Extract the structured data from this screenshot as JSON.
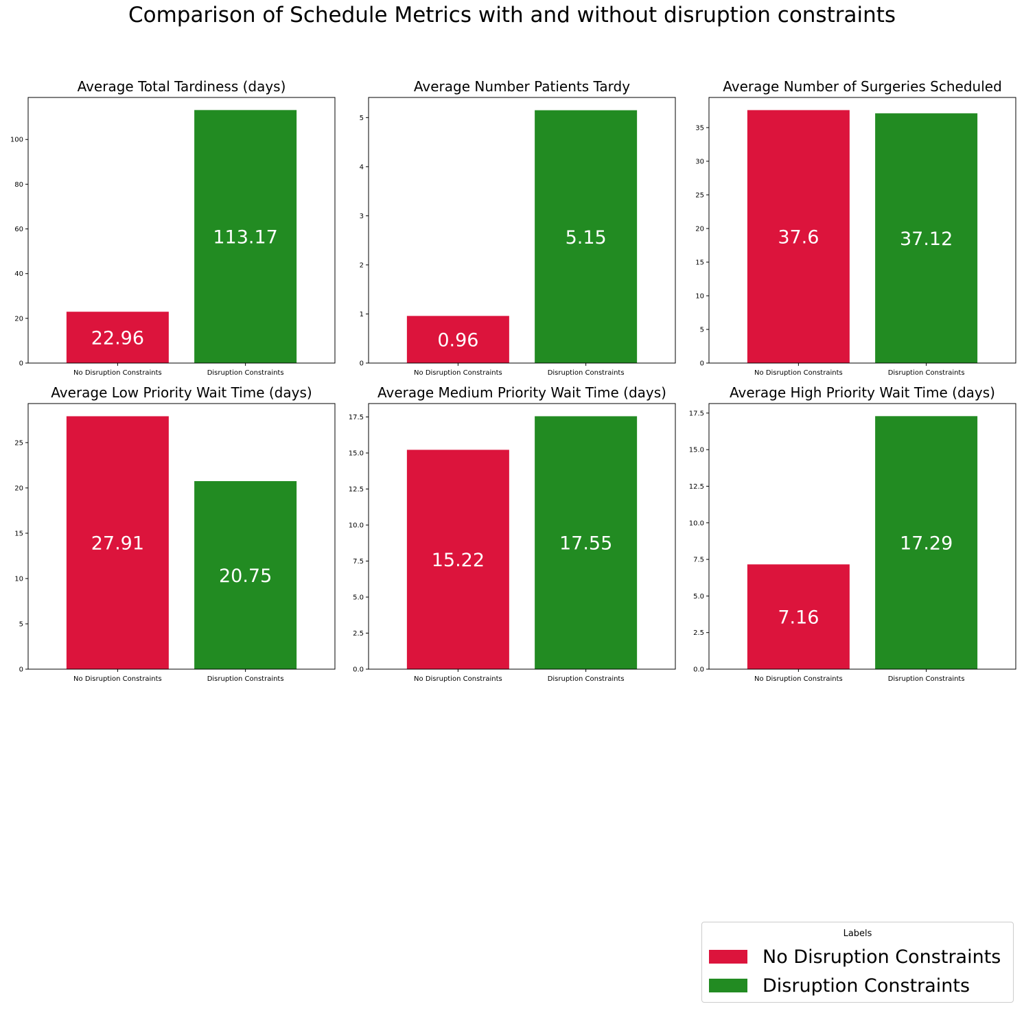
{
  "suptitle": "Comparison of Schedule Metrics with and without disruption constraints",
  "colors": {
    "no_disruption": "#DC143C",
    "disruption": "#228B22"
  },
  "legend": {
    "title": "Labels",
    "entries": [
      {
        "label": "No Disruption Constraints",
        "color": "#DC143C"
      },
      {
        "label": "Disruption Constraints",
        "color": "#228B22"
      }
    ]
  },
  "chart_data": [
    {
      "type": "bar",
      "title": "Average Total Tardiness (days)",
      "categories": [
        "No Disruption Constraints",
        "Disruption Constraints"
      ],
      "values": [
        22.96,
        113.17
      ],
      "value_labels": [
        "22.96",
        "113.17"
      ],
      "ylim": [
        0,
        118.8
      ],
      "yticks": [
        0,
        20,
        40,
        60,
        80,
        100
      ],
      "ytick_labels": [
        "0",
        "20",
        "40",
        "60",
        "80",
        "100"
      ]
    },
    {
      "type": "bar",
      "title": "Average Number Patients Tardy",
      "categories": [
        "No Disruption Constraints",
        "Disruption Constraints"
      ],
      "values": [
        0.96,
        5.15
      ],
      "value_labels": [
        "0.96",
        "5.15"
      ],
      "ylim": [
        0,
        5.41
      ],
      "yticks": [
        0,
        1,
        2,
        3,
        4,
        5
      ],
      "ytick_labels": [
        "0",
        "1",
        "2",
        "3",
        "4",
        "5"
      ]
    },
    {
      "type": "bar",
      "title": "Average Number of Surgeries Scheduled",
      "categories": [
        "No Disruption Constraints",
        "Disruption Constraints"
      ],
      "values": [
        37.6,
        37.12
      ],
      "value_labels": [
        "37.6",
        "37.12"
      ],
      "ylim": [
        0,
        39.48
      ],
      "yticks": [
        0,
        5,
        10,
        15,
        20,
        25,
        30,
        35
      ],
      "ytick_labels": [
        "0",
        "5",
        "10",
        "15",
        "20",
        "25",
        "30",
        "35"
      ]
    },
    {
      "type": "bar",
      "title": "Average Low Priority Wait Time (days)",
      "categories": [
        "No Disruption Constraints",
        "Disruption Constraints"
      ],
      "values": [
        27.91,
        20.75
      ],
      "value_labels": [
        "27.91",
        "20.75"
      ],
      "ylim": [
        0,
        29.31
      ],
      "yticks": [
        0,
        5,
        10,
        15,
        20,
        25
      ],
      "ytick_labels": [
        "0",
        "5",
        "10",
        "15",
        "20",
        "25"
      ]
    },
    {
      "type": "bar",
      "title": "Average Medium Priority Wait Time (days)",
      "categories": [
        "No Disruption Constraints",
        "Disruption Constraints"
      ],
      "values": [
        15.22,
        17.55
      ],
      "value_labels": [
        "15.22",
        "17.55"
      ],
      "ylim": [
        0,
        18.43
      ],
      "yticks": [
        0,
        2.5,
        5,
        7.5,
        10,
        12.5,
        15,
        17.5
      ],
      "ytick_labels": [
        "0.0",
        "2.5",
        "5.0",
        "7.5",
        "10.0",
        "12.5",
        "15.0",
        "17.5"
      ]
    },
    {
      "type": "bar",
      "title": "Average High Priority Wait Time (days)",
      "categories": [
        "No Disruption Constraints",
        "Disruption Constraints"
      ],
      "values": [
        7.16,
        17.29
      ],
      "value_labels": [
        "7.16",
        "17.29"
      ],
      "ylim": [
        0,
        18.15
      ],
      "yticks": [
        0,
        2.5,
        5,
        7.5,
        10,
        12.5,
        15,
        17.5
      ],
      "ytick_labels": [
        "0.0",
        "2.5",
        "5.0",
        "7.5",
        "10.0",
        "12.5",
        "15.0",
        "17.5"
      ]
    }
  ]
}
